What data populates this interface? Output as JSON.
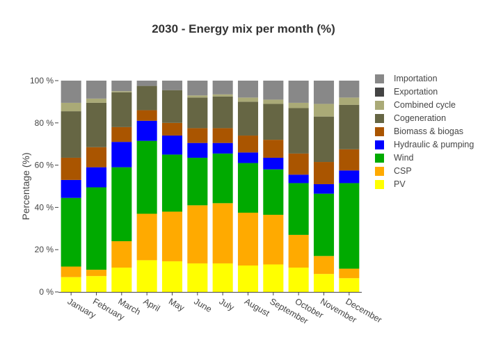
{
  "chart_data": {
    "type": "bar",
    "stacked": true,
    "title": "2030 - Energy mix per month (%)",
    "xlabel": "",
    "ylabel": "Percentage (%)",
    "ylim": [
      0,
      100
    ],
    "yticks": [
      0,
      20,
      40,
      60,
      80,
      100
    ],
    "ytick_labels": [
      "0 %",
      "20 %",
      "40 %",
      "60 %",
      "80 %",
      "100 %"
    ],
    "grid": false,
    "legend_position": "right",
    "categories": [
      "January",
      "February",
      "March",
      "April",
      "May",
      "June",
      "July",
      "August",
      "September",
      "October",
      "November",
      "December"
    ],
    "series": [
      {
        "name": "PV",
        "color": "#ffff00",
        "values": [
          7.0,
          7.5,
          11.5,
          15.0,
          14.5,
          13.5,
          13.5,
          12.5,
          13.0,
          11.5,
          8.5,
          6.5
        ]
      },
      {
        "name": "CSP",
        "color": "#ffaa00",
        "values": [
          5.0,
          3.0,
          12.5,
          22.0,
          23.5,
          27.5,
          28.5,
          25.0,
          23.5,
          15.5,
          8.5,
          4.5
        ]
      },
      {
        "name": "Wind",
        "color": "#00aa00",
        "values": [
          32.5,
          39.0,
          35.0,
          34.5,
          27.0,
          22.5,
          23.5,
          23.5,
          21.5,
          24.5,
          29.5,
          40.5
        ]
      },
      {
        "name": "Hydraulic & pumping",
        "color": "#0000ff",
        "values": [
          8.5,
          9.5,
          12.0,
          9.5,
          9.0,
          7.0,
          5.0,
          5.0,
          5.5,
          4.0,
          4.5,
          6.0
        ]
      },
      {
        "name": "Biomass & biogas",
        "color": "#aa5500",
        "values": [
          10.5,
          9.5,
          7.0,
          5.0,
          6.0,
          7.0,
          7.0,
          8.0,
          8.5,
          10.0,
          10.5,
          10.0
        ]
      },
      {
        "name": "Cogeneration",
        "color": "#666644",
        "values": [
          22.0,
          21.0,
          16.5,
          11.5,
          15.5,
          14.5,
          15.0,
          16.0,
          17.0,
          21.5,
          21.5,
          21.0
        ]
      },
      {
        "name": "Combined cycle",
        "color": "#aaaa77",
        "values": [
          4.0,
          2.0,
          0.5,
          0.0,
          0.0,
          1.0,
          1.0,
          2.0,
          2.0,
          2.5,
          6.0,
          3.5
        ]
      },
      {
        "name": "Exportation",
        "color": "#444444",
        "values": [
          0,
          0,
          0,
          0,
          0,
          0,
          0,
          0,
          0,
          0,
          0,
          0
        ]
      },
      {
        "name": "Importation",
        "color": "#888888",
        "values": [
          10.5,
          8.5,
          5.0,
          2.5,
          4.5,
          7.0,
          6.5,
          8.0,
          9.0,
          10.5,
          11.0,
          8.0
        ]
      }
    ]
  }
}
